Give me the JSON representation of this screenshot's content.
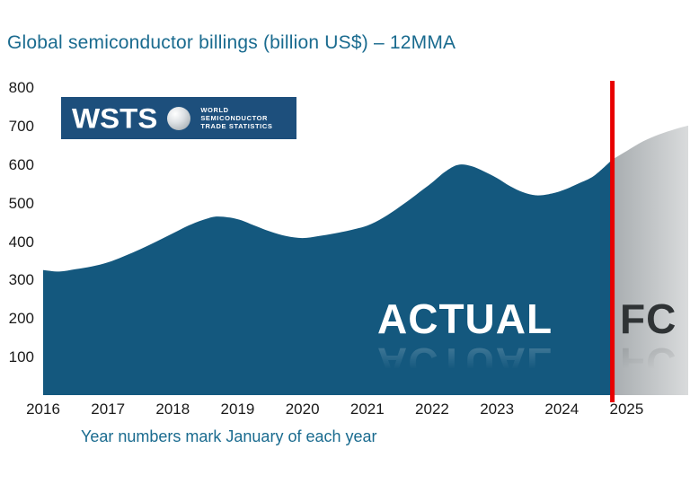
{
  "title": "Global semiconductor billings (billion US$) – 12MMA",
  "caption": "Year numbers mark January of each year",
  "logo": {
    "acronym": "WSTS",
    "lines": [
      "WORLD",
      "SEMICONDUCTOR",
      "TRADE STATISTICS"
    ]
  },
  "labels": {
    "actual": "ACTUAL",
    "forecast": "FC"
  },
  "colors": {
    "title_text": "#1a6b8f",
    "axis_text": "#1a1a1a",
    "area_actual": "#14587e",
    "forecast_start": "#a8adb0",
    "forecast_end": "#d9dbdc",
    "red_line": "#e80000",
    "fc_text": "#2f3335",
    "logo_bg": "#1d4f7c"
  },
  "chart_data": {
    "type": "area",
    "title": "Global semiconductor billings (billion US$) – 12MMA",
    "xlabel": "Year numbers mark January of each year",
    "ylabel": "billion US$",
    "xlim": [
      2016,
      2025.95
    ],
    "ylim": [
      0,
      800
    ],
    "yticks": [
      100,
      200,
      300,
      400,
      500,
      600,
      700,
      800
    ],
    "xticks": [
      2016,
      2017,
      2018,
      2019,
      2020,
      2021,
      2022,
      2023,
      2024,
      2025
    ],
    "grid": false,
    "legend_position": "none",
    "forecast_boundary": 2024.78,
    "series": [
      {
        "name": "Actual",
        "points": [
          [
            2016.0,
            325
          ],
          [
            2016.25,
            321
          ],
          [
            2016.5,
            327
          ],
          [
            2016.75,
            334
          ],
          [
            2017.0,
            345
          ],
          [
            2017.25,
            361
          ],
          [
            2017.5,
            379
          ],
          [
            2017.75,
            399
          ],
          [
            2018.0,
            420
          ],
          [
            2018.25,
            441
          ],
          [
            2018.5,
            457
          ],
          [
            2018.7,
            464
          ],
          [
            2019.0,
            457
          ],
          [
            2019.25,
            441
          ],
          [
            2019.5,
            425
          ],
          [
            2019.75,
            413
          ],
          [
            2020.0,
            408
          ],
          [
            2020.25,
            413
          ],
          [
            2020.5,
            420
          ],
          [
            2020.75,
            429
          ],
          [
            2021.0,
            440
          ],
          [
            2021.25,
            461
          ],
          [
            2021.5,
            489
          ],
          [
            2021.75,
            520
          ],
          [
            2022.0,
            552
          ],
          [
            2022.2,
            580
          ],
          [
            2022.4,
            598
          ],
          [
            2022.6,
            595
          ],
          [
            2022.8,
            581
          ],
          [
            2023.0,
            564
          ],
          [
            2023.2,
            543
          ],
          [
            2023.4,
            527
          ],
          [
            2023.6,
            519
          ],
          [
            2023.8,
            522
          ],
          [
            2024.0,
            531
          ],
          [
            2024.25,
            549
          ],
          [
            2024.5,
            570
          ],
          [
            2024.78,
            612
          ]
        ]
      },
      {
        "name": "FC",
        "points": [
          [
            2024.78,
            612
          ],
          [
            2025.0,
            634
          ],
          [
            2025.25,
            659
          ],
          [
            2025.5,
            677
          ],
          [
            2025.75,
            691
          ],
          [
            2025.95,
            700
          ]
        ]
      }
    ]
  }
}
